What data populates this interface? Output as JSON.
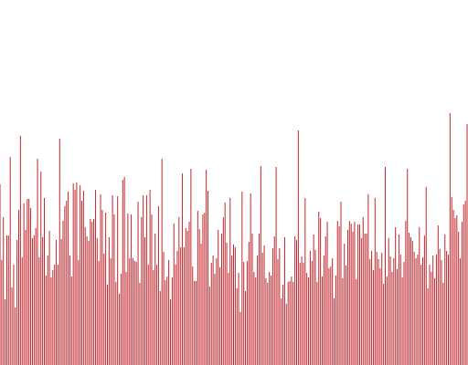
{
  "chart_data": {
    "type": "bar",
    "title": "",
    "xlabel": "",
    "ylabel": "",
    "ylim": [
      0,
      360
    ],
    "grid": false,
    "legend": "none",
    "bar_color": "#c1272d",
    "values": [
      198,
      115,
      162,
      72,
      142,
      142,
      228,
      85,
      110,
      63,
      137,
      170,
      251,
      118,
      177,
      148,
      182,
      182,
      172,
      139,
      142,
      150,
      226,
      118,
      212,
      140,
      183,
      98,
      120,
      147,
      96,
      104,
      110,
      137,
      110,
      248,
      138,
      158,
      174,
      180,
      190,
      120,
      97,
      199,
      192,
      200,
      115,
      197,
      180,
      191,
      151,
      141,
      136,
      160,
      157,
      160,
      192,
      139,
      114,
      187,
      170,
      122,
      167,
      88,
      140,
      117,
      186,
      165,
      91,
      185,
      78,
      100,
      203,
      206,
      102,
      166,
      117,
      165,
      117,
      114,
      113,
      179,
      90,
      162,
      186,
      140,
      186,
      110,
      192,
      165,
      104,
      144,
      110,
      174,
      81,
      226,
      124,
      93,
      97,
      115,
      72,
      96,
      155,
      110,
      125,
      162,
      129,
      210,
      129,
      150,
      147,
      157,
      215,
      108,
      92,
      92,
      169,
      149,
      133,
      165,
      167,
      214,
      191,
      86,
      112,
      120,
      100,
      117,
      148,
      107,
      144,
      162,
      178,
      134,
      101,
      183,
      120,
      132,
      129,
      84,
      101,
      58,
      190,
      113,
      81,
      114,
      135,
      188,
      144,
      102,
      96,
      120,
      144,
      218,
      123,
      131,
      95,
      90,
      102,
      98,
      128,
      141,
      217,
      116,
      128,
      73,
      88,
      140,
      67,
      91,
      92,
      97,
      91,
      141,
      137,
      257,
      112,
      119,
      112,
      183,
      101,
      96,
      125,
      114,
      143,
      126,
      91,
      168,
      161,
      97,
      120,
      141,
      157,
      106,
      108,
      117,
      73,
      98,
      158,
      152,
      179,
      95,
      133,
      109,
      148,
      158,
      155,
      146,
      157,
      94,
      154,
      154,
      139,
      162,
      144,
      144,
      187,
      116,
      125,
      104,
      183,
      124,
      116,
      106,
      123,
      89,
      217,
      97,
      139,
      119,
      102,
      117,
      151,
      105,
      143,
      121,
      96,
      113,
      158,
      215,
      145,
      140,
      136,
      124,
      117,
      121,
      151,
      110,
      118,
      142,
      195,
      84,
      110,
      102,
      120,
      95,
      121,
      153,
      127,
      115,
      90,
      143,
      125,
      121,
      276,
      184,
      170,
      161,
      164,
      146,
      117,
      157,
      176,
      180,
      264
    ]
  }
}
